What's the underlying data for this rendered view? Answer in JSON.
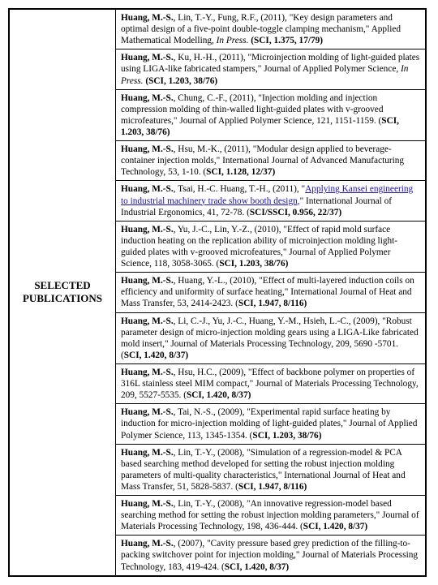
{
  "header_label": "SELECTED PUBLICATIONS",
  "entries": [
    {
      "lead": "Huang, M.-S.",
      "authors": ", Lin, T.-Y., Fung, R.F., (2011), \"Key design parameters and optimal design of a five-point double-toggle clamping mechanism,\" Applied Mathematical Modelling, ",
      "venue": "In Press.",
      "metrics": " (SCI, 1.375, 17/79)"
    },
    {
      "lead": "Huang, M.-S.",
      "authors": ", Ku, H.-H., (2011), \"Microinjection molding of light-guided plates using LIGA-like fabricated stampers,\" Journal of Applied Polymer Science, ",
      "venue": "In Press.",
      "metrics": " (SCI, 1.203, 38/76)"
    },
    {
      "lead": "Huang, M.-S.",
      "authors": ", Chung, C.-F., (2011), \"Injection molding and injection compression molding of thin-walled light-guided plates with v-grooved microfeatures,\" Journal of Applied Polymer Science, 121, 1151-1159. (",
      "venue": "",
      "metrics": "SCI, 1.203, 38/76)"
    },
    {
      "lead": "Huang, M.-S.",
      "authors": ", Hsu, M.-K., (2011), \"Modular design applied to beverage-container injection molds,\" International Journal of Advanced Manufacturing Technology, 53, 1-10. (",
      "venue": "",
      "metrics": "SCI, 1.128, 12/37)"
    },
    {
      "lead": "Huang, M.-S.",
      "authors": ", Tsai, H.-C. Huang, T.-H., (2011), \"",
      "link": "Applying Kansei engineering to industrial machinery trade show booth design,",
      "tail": "\" International Journal of Industrial Ergonomics, 41, 72-78. (",
      "metrics": "SCI/SSCI, 0.956, 22/37)"
    },
    {
      "lead": "Huang, M.-S.",
      "authors": ", Yu, J.-C., Lin, Y.-Z., (2010), \"Effect of rapid mold surface induction heating on the replication ability of microinjection molding light-guided plates with v-grooved microfeatures,\" Journal of Applied Polymer Science, 118, 3058-3065. (",
      "venue": "",
      "metrics": "SCI, 1.203, 38/76)"
    },
    {
      "lead": "Huang, M.-S.",
      "authors": ", Huang, Y.-L., (2010), \"Effect of multi-layered induction coils on efficiency and uniformity of surface heating,\" International Journal of Heat and Mass Transfer, 53, 2414-2423. (",
      "venue": "",
      "metrics": "SCI, 1.947, 8/116)"
    },
    {
      "lead": "Huang, M.-S.",
      "authors": ", Li, C.-J., Yu, J.-C., Huang, Y.-M., Hsieh, L.-C., (2009), \"Robust parameter design of micro-injection molding gears using a LIGA-Like fabricated mold insert,\" Journal of Materials Processing Technology, 209, 5690 -5701. (",
      "venue": "",
      "metrics": "SCI, 1.420, 8/37)"
    },
    {
      "lead": "Huang, M.-S.",
      "authors": ", Hsu, H.C., (2009), \"Effect of backbone polymer on properties of 316L stainless steel MIM compact,\" Journal of Materials Processing Technology, 209, 5527-5535. (",
      "venue": "",
      "metrics": "SCI, 1.420, 8/37)"
    },
    {
      "lead": "Huang, M.-S.",
      "authors": ", Tai, N.-S., (2009), \"Experimental rapid surface heating by induction for micro-injection molding of light-guided plates,\" Journal of Applied Polymer Science, 113, 1345-1354. (",
      "venue": "",
      "metrics": "SCI, 1.203, 38/76)"
    },
    {
      "lead": "Huang, M.-S.",
      "authors": ", Lin, T.-Y., (2008), \"Simulation of a regression-model & PCA based searching method developed for setting the robust injection molding parameters of multi-quality characteristics,\" International Journal of Heat and Mass Transfer, 51, 5828-5837. (",
      "venue": "",
      "metrics": "SCI, 1.947, 8/116)"
    },
    {
      "lead": "Huang, M.-S.",
      "authors": ", Lin, T.-Y., (2008), \"An innovative regression-model based searching method for setting the robust injection molding parameters,\" Journal of Materials Processing Technology, 198, 436-444. (",
      "venue": "",
      "metrics": "SCI, 1.420, 8/37)"
    },
    {
      "lead": "Huang, M.-S.",
      "authors": ", (2007), \"Cavity pressure based grey prediction of the filling-to-packing switchover point for injection molding,\" Journal of Materials Processing Technology, 183, 419-424. (",
      "venue": "",
      "metrics": "SCI, 1.420, 8/37)"
    }
  ]
}
